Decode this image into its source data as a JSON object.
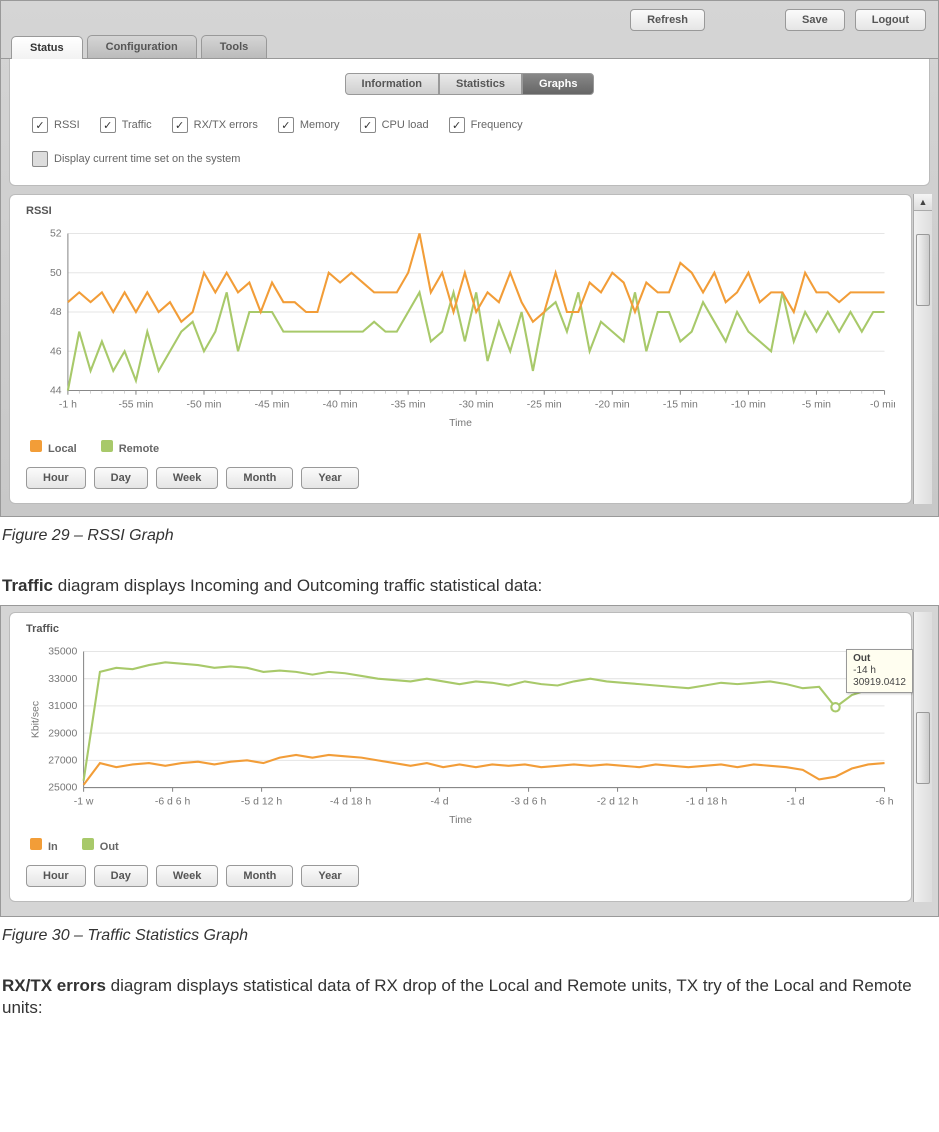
{
  "top_buttons": {
    "refresh": "Refresh",
    "save": "Save",
    "logout": "Logout"
  },
  "main_tabs": {
    "status": "Status",
    "config": "Configuration",
    "tools": "Tools"
  },
  "sub_tabs": {
    "info": "Information",
    "stats": "Statistics",
    "graphs": "Graphs"
  },
  "checks": {
    "rssi": "RSSI",
    "traffic": "Traffic",
    "rxtx": "RX/TX errors",
    "memory": "Memory",
    "cpu": "CPU load",
    "freq": "Frequency",
    "display_time": "Display current time set on the system"
  },
  "rssi_chart": {
    "type": "line",
    "title": "RSSI",
    "xlabel": "Time",
    "ylim": [
      44,
      52
    ],
    "ytick_step": 2,
    "yticks": [
      44,
      46,
      48,
      50,
      52
    ],
    "xticks": [
      "-1 h",
      "-55 min",
      "-50 min",
      "-45 min",
      "-40 min",
      "-35 min",
      "-30 min",
      "-25 min",
      "-20 min",
      "-15 min",
      "-10 min",
      "-5 min",
      "-0 min"
    ],
    "colors": {
      "local": "#f29d38",
      "remote": "#a8c96a",
      "grid": "#e5e5e5",
      "axis": "#888",
      "bg": "#ffffff"
    },
    "line_width": 2,
    "local": [
      48.5,
      49,
      48.5,
      49,
      48,
      49,
      48,
      49,
      48,
      48.5,
      47.5,
      48,
      50,
      49,
      50,
      49,
      49.5,
      48,
      49.5,
      48.5,
      48.5,
      48,
      48,
      50,
      49.5,
      50,
      49.5,
      49,
      49,
      49,
      50,
      52,
      49,
      50,
      48,
      50,
      48,
      49,
      48.5,
      50,
      48.5,
      47.5,
      48,
      50,
      48,
      48,
      49.5,
      49,
      50,
      49.5,
      48,
      49.5,
      49,
      49,
      50.5,
      50,
      49,
      50,
      48.5,
      49,
      50,
      48.5,
      49,
      49,
      48,
      50,
      49,
      49,
      48.5,
      49,
      49,
      49,
      49
    ],
    "remote": [
      44,
      47,
      45,
      46.5,
      45,
      46,
      44.5,
      47,
      45,
      46,
      47,
      47.5,
      46,
      47,
      49,
      46,
      48,
      48,
      48,
      47,
      47,
      47,
      47,
      47,
      47,
      47,
      47,
      47.5,
      47,
      47,
      48,
      49,
      46.5,
      47,
      49,
      46.5,
      49,
      45.5,
      47.5,
      46,
      48,
      45,
      48,
      48.5,
      47,
      49,
      46,
      47.5,
      47,
      46.5,
      49,
      46,
      48,
      48,
      46.5,
      47,
      48.5,
      47.5,
      46.5,
      48,
      47,
      46.5,
      46,
      49,
      46.5,
      48,
      47,
      48,
      47,
      48,
      47,
      48,
      48
    ]
  },
  "legend": {
    "local": "Local",
    "remote": "Remote",
    "in": "In",
    "out": "Out"
  },
  "time_buttons": {
    "hour": "Hour",
    "day": "Day",
    "week": "Week",
    "month": "Month",
    "year": "Year"
  },
  "fig29": "Figure 29 – RSSI Graph",
  "traffic_text_bold": "Traffic",
  "traffic_text_rest": " diagram displays Incoming and Outcoming traffic statistical data:",
  "traffic_chart": {
    "type": "line",
    "title": "Traffic",
    "xlabel": "Time",
    "ylabel": "Kbit/sec",
    "ylim": [
      25000,
      35000
    ],
    "yticks": [
      25000,
      27000,
      29000,
      31000,
      33000,
      35000
    ],
    "xticks": [
      "-1 w",
      "-6 d 6 h",
      "-5 d 12 h",
      "-4 d 18 h",
      "-4 d",
      "-3 d 6 h",
      "-2 d 12 h",
      "-1 d 18 h",
      "-1 d",
      "-6 h"
    ],
    "colors": {
      "in": "#f29d38",
      "out": "#a8c96a",
      "grid": "#e5e5e5",
      "axis": "#888",
      "bg": "#ffffff"
    },
    "line_width": 2,
    "out": [
      25500,
      33500,
      33800,
      33700,
      34000,
      34200,
      34100,
      34000,
      33800,
      33900,
      33800,
      33500,
      33600,
      33500,
      33300,
      33500,
      33400,
      33200,
      33000,
      32900,
      32800,
      33000,
      32800,
      32600,
      32800,
      32700,
      32500,
      32800,
      32600,
      32500,
      32800,
      33000,
      32800,
      32700,
      32600,
      32500,
      32400,
      32300,
      32500,
      32700,
      32600,
      32700,
      32800,
      32600,
      32300,
      32400,
      30900,
      31800,
      32200,
      32300
    ],
    "in": [
      25200,
      26800,
      26500,
      26700,
      26800,
      26600,
      26800,
      26900,
      26700,
      26900,
      27000,
      26800,
      27200,
      27400,
      27200,
      27400,
      27300,
      27200,
      27000,
      26800,
      26600,
      26800,
      26500,
      26700,
      26500,
      26700,
      26600,
      26700,
      26500,
      26600,
      26700,
      26600,
      26700,
      26600,
      26500,
      26700,
      26600,
      26500,
      26600,
      26700,
      26500,
      26700,
      26600,
      26500,
      26300,
      25600,
      25800,
      26400,
      26700,
      26800
    ],
    "tooltip": {
      "label1": "Out",
      "label2": "-14 h",
      "value": "30919.0412"
    }
  },
  "fig30": "Figure 30 – Traffic Statistics Graph",
  "rxtx_text_bold": "RX/TX errors",
  "rxtx_text_rest": " diagram displays statistical data of RX drop of the Local and Remote units, TX try of the Local and Remote units:"
}
